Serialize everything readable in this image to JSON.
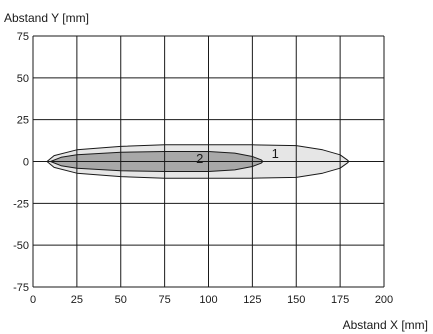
{
  "chart_data": {
    "type": "area",
    "title": "",
    "xlabel": "Abstand X [mm]",
    "ylabel": "Abstand Y [mm]",
    "xlim": [
      0,
      200
    ],
    "ylim": [
      -75,
      75
    ],
    "xticks": [
      "0",
      "25",
      "50",
      "75",
      "100",
      "125",
      "150",
      "175",
      "200"
    ],
    "yticks": [
      "75",
      "50",
      "25",
      "0",
      "-25",
      "-50",
      "-75"
    ],
    "grid": true,
    "regions": [
      {
        "label": "1",
        "fill": "#e6e6e6",
        "label_at": [
          138,
          5
        ],
        "outline": [
          [
            8,
            0
          ],
          [
            12,
            3.5
          ],
          [
            25,
            7
          ],
          [
            50,
            9
          ],
          [
            75,
            10
          ],
          [
            100,
            10
          ],
          [
            125,
            10
          ],
          [
            150,
            9.5
          ],
          [
            165,
            7
          ],
          [
            175,
            4
          ],
          [
            179,
            1
          ],
          [
            180,
            0
          ],
          [
            179,
            -1
          ],
          [
            175,
            -4
          ],
          [
            165,
            -7
          ],
          [
            150,
            -9.5
          ],
          [
            125,
            -10
          ],
          [
            100,
            -10
          ],
          [
            75,
            -10
          ],
          [
            50,
            -9
          ],
          [
            25,
            -7
          ],
          [
            12,
            -3.5
          ],
          [
            8,
            0
          ]
        ]
      },
      {
        "label": "2",
        "fill": "#a8a8a8",
        "label_at": [
          95,
          2
        ],
        "outline": [
          [
            10,
            0
          ],
          [
            16,
            2.5
          ],
          [
            25,
            4
          ],
          [
            50,
            5.5
          ],
          [
            75,
            6
          ],
          [
            100,
            6
          ],
          [
            115,
            5
          ],
          [
            125,
            3
          ],
          [
            130,
            1
          ],
          [
            131,
            0
          ],
          [
            130,
            -1
          ],
          [
            125,
            -3
          ],
          [
            115,
            -5
          ],
          [
            100,
            -6
          ],
          [
            75,
            -6
          ],
          [
            50,
            -5.5
          ],
          [
            25,
            -4
          ],
          [
            16,
            -2.5
          ],
          [
            10,
            0
          ]
        ]
      }
    ]
  }
}
